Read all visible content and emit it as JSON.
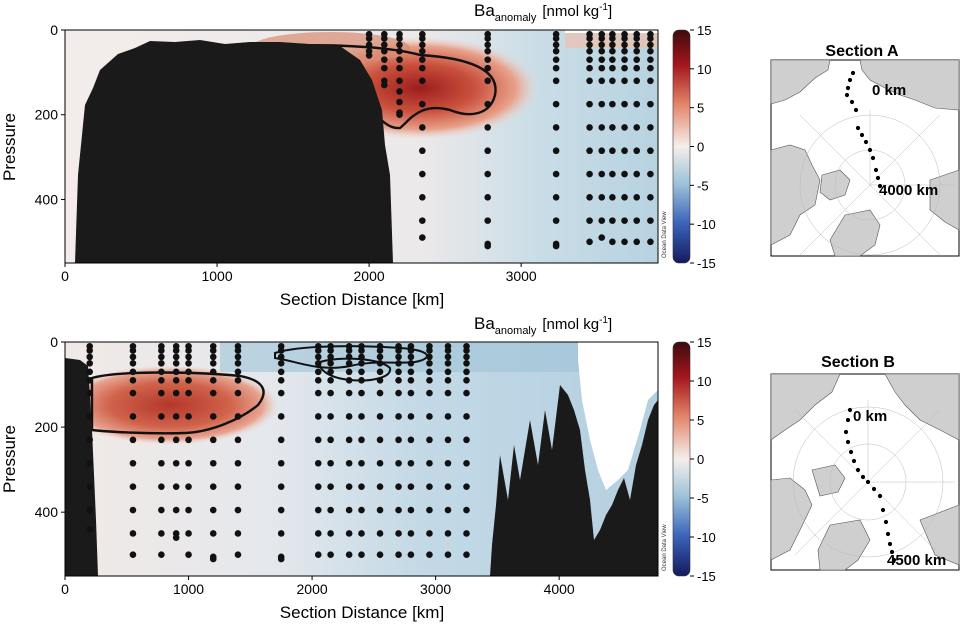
{
  "colors": {
    "positive": "#a4161c",
    "neutral": "#f6efec",
    "negative": "#2b3fa0",
    "land": "#1a1a1a",
    "contour": "#111111"
  },
  "colorbar": {
    "ticks": [
      "15",
      "10",
      "5",
      "0",
      "-5",
      "-10",
      "-15"
    ],
    "watermark": "Ocean Data View"
  },
  "chart_data": [
    {
      "type": "heatmap",
      "panel": "Section A",
      "title_main": "Ba",
      "title_sub": "anomaly",
      "title_unit": "[nmol kg",
      "title_sup": "-1",
      "title_close": "]",
      "xlabel": "Section Distance [km]",
      "ylabel": "Pressure",
      "xlim": [
        0,
        3900
      ],
      "ylim": [
        550,
        0
      ],
      "xticks": [
        "0",
        "1000",
        "2000",
        "3000"
      ],
      "xtick_values": [
        0,
        1000,
        2000,
        3000
      ],
      "yticks": [
        "0",
        "200",
        "400"
      ],
      "ytick_values": [
        0,
        200,
        400
      ],
      "clim": [
        -15,
        15
      ],
      "anomaly_max": {
        "x": 2350,
        "pressure": 140,
        "value": 12
      },
      "station_x": [
        2000,
        2100,
        2200,
        2350,
        2780,
        3230,
        3450,
        3530,
        3600,
        3680,
        3760,
        3850
      ],
      "station_max_pressure": [
        60,
        130,
        200,
        490,
        510,
        510,
        500,
        490,
        500,
        500,
        500,
        500
      ]
    },
    {
      "type": "heatmap",
      "panel": "Section B",
      "title_main": "Ba",
      "title_sub": "anomaly",
      "title_unit": "[nmol kg",
      "title_sup": "-1",
      "title_close": "]",
      "xlabel": "Section Distance [km]",
      "ylabel": "Pressure",
      "xlim": [
        0,
        4800
      ],
      "ylim": [
        550,
        0
      ],
      "xticks": [
        "0",
        "1000",
        "2000",
        "3000",
        "4000"
      ],
      "xtick_values": [
        0,
        1000,
        2000,
        3000,
        4000
      ],
      "yticks": [
        "0",
        "200",
        "400"
      ],
      "ytick_values": [
        0,
        200,
        400
      ],
      "clim": [
        -15,
        15
      ],
      "anomaly_max": {
        "x": 700,
        "pressure": 140,
        "value": 11
      },
      "station_x": [
        200,
        550,
        780,
        900,
        1000,
        1200,
        1400,
        1750,
        2050,
        2150,
        2300,
        2400,
        2550,
        2700,
        2800,
        2950,
        3100,
        3250
      ],
      "station_max_pressure": [
        440,
        500,
        500,
        460,
        500,
        510,
        500,
        510,
        500,
        500,
        500,
        500,
        500,
        500,
        500,
        500,
        500,
        500
      ]
    }
  ],
  "maps": [
    {
      "title": "Section A",
      "start_label": "0 km",
      "end_label": "4000 km"
    },
    {
      "title": "Section B",
      "start_label": "0 km",
      "end_label": "4500 km"
    }
  ]
}
